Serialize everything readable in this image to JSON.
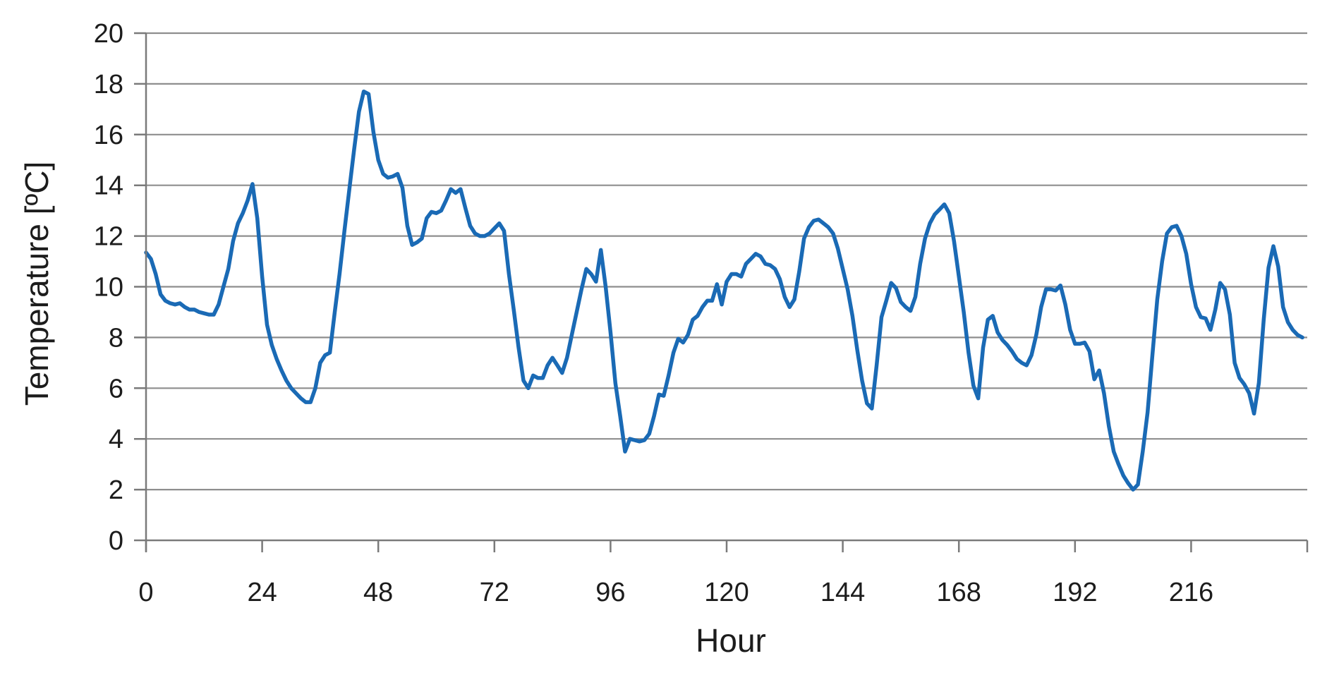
{
  "chart_data": {
    "type": "line",
    "title": "",
    "xlabel": "Hour",
    "ylabel": "Temperature [ºC]",
    "xlim": [
      0,
      240
    ],
    "ylim": [
      0,
      20
    ],
    "x_ticks": [
      0,
      24,
      48,
      72,
      96,
      120,
      144,
      168,
      192,
      216
    ],
    "y_tick_step": 2,
    "grid": true,
    "legend_position": "none",
    "line_color": "#1a6ab5",
    "grid_color": "#8e8e8e",
    "axis_color": "#7a7a7a",
    "tick_label_color": "#1c1c1c",
    "background_color": "#ffffff",
    "x_start": 0,
    "x_step": 1,
    "values": [
      11.35,
      11.1,
      10.5,
      9.7,
      9.45,
      9.35,
      9.3,
      9.35,
      9.2,
      9.1,
      9.1,
      9.0,
      8.95,
      8.9,
      8.9,
      9.3,
      10.0,
      10.7,
      11.8,
      12.5,
      12.9,
      13.4,
      14.05,
      12.7,
      10.4,
      8.5,
      7.7,
      7.15,
      6.7,
      6.3,
      6.0,
      5.8,
      5.6,
      5.45,
      5.45,
      6.0,
      7.0,
      7.3,
      7.4,
      9.0,
      10.5,
      12.2,
      13.8,
      15.4,
      16.9,
      17.7,
      17.6,
      16.1,
      15.0,
      14.45,
      14.3,
      14.35,
      14.45,
      13.9,
      12.4,
      11.65,
      11.75,
      11.9,
      12.7,
      12.95,
      12.9,
      13.0,
      13.4,
      13.85,
      13.7,
      13.85,
      13.1,
      12.4,
      12.1,
      12.0,
      12.0,
      12.1,
      12.3,
      12.5,
      12.2,
      10.5,
      9.1,
      7.6,
      6.3,
      6.0,
      6.5,
      6.4,
      6.4,
      6.9,
      7.2,
      6.9,
      6.6,
      7.2,
      8.1,
      9.0,
      9.9,
      10.7,
      10.5,
      10.2,
      11.45,
      10.0,
      8.2,
      6.2,
      4.9,
      3.5,
      4.0,
      3.95,
      3.9,
      3.95,
      4.2,
      4.9,
      5.75,
      5.7,
      6.5,
      7.4,
      7.95,
      7.8,
      8.1,
      8.7,
      8.85,
      9.2,
      9.45,
      9.45,
      10.1,
      9.3,
      10.2,
      10.5,
      10.5,
      10.4,
      10.9,
      11.1,
      11.3,
      11.2,
      10.9,
      10.85,
      10.7,
      10.3,
      9.6,
      9.2,
      9.5,
      10.6,
      11.9,
      12.35,
      12.6,
      12.65,
      12.5,
      12.35,
      12.1,
      11.5,
      10.7,
      9.9,
      8.85,
      7.5,
      6.3,
      5.4,
      5.2,
      6.9,
      8.8,
      9.45,
      10.15,
      9.95,
      9.4,
      9.2,
      9.05,
      9.6,
      10.9,
      11.9,
      12.5,
      12.85,
      13.05,
      13.25,
      12.9,
      11.8,
      10.4,
      9.0,
      7.4,
      6.1,
      5.6,
      7.6,
      8.7,
      8.85,
      8.2,
      7.9,
      7.7,
      7.45,
      7.15,
      7.0,
      6.9,
      7.3,
      8.1,
      9.2,
      9.9,
      9.9,
      9.85,
      10.05,
      9.3,
      8.3,
      7.75,
      7.75,
      7.8,
      7.45,
      6.35,
      6.7,
      5.8,
      4.5,
      3.5,
      3.0,
      2.55,
      2.25,
      2.0,
      2.2,
      3.5,
      5.05,
      7.3,
      9.5,
      11.0,
      12.1,
      12.35,
      12.4,
      12.0,
      11.3,
      10.1,
      9.2,
      8.8,
      8.75,
      8.3,
      9.1,
      10.15,
      9.9,
      8.9,
      7.0,
      6.4,
      6.15,
      5.8,
      5.0,
      6.2,
      8.7,
      10.75,
      11.6,
      10.8,
      9.2,
      8.6,
      8.3,
      8.1,
      8.0
    ]
  }
}
